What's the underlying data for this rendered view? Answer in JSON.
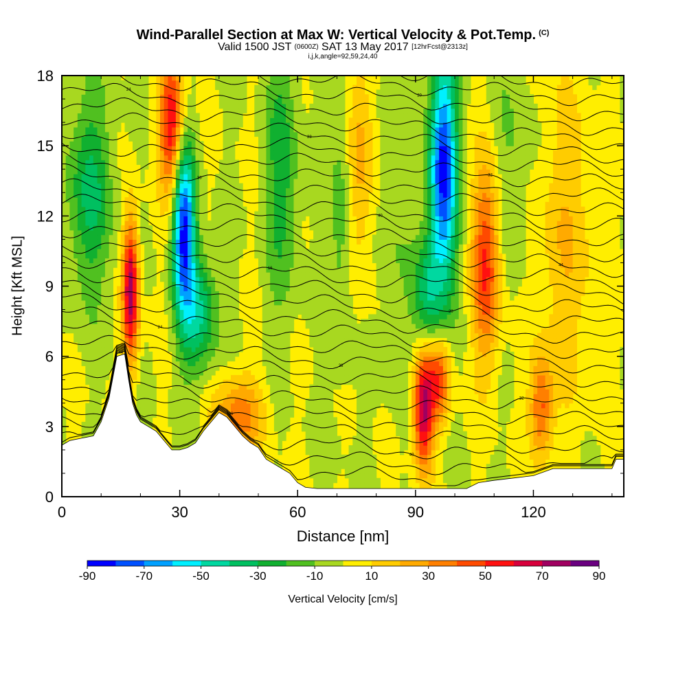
{
  "header": {
    "title": "Wind-Parallel Section at Max W: Vertical Velocity & Pot.Temp.",
    "title_unit": "(C)",
    "valid_prefix": "Valid 1500 JST",
    "valid_utc": "(0600Z)",
    "valid_date": "SAT 13 May 2017",
    "forecast": "[12hrFcst@2313z]",
    "indices": "i,j,k,angle=92,59,24,40"
  },
  "chart_data": {
    "type": "heatmap",
    "title": "Wind-Parallel Section at Max W: Vertical Velocity & Pot.Temp.",
    "xlabel": "Distance [nm]",
    "ylabel": "Height [Kft MSL]",
    "xlim": [
      0,
      143
    ],
    "ylim": [
      0,
      18
    ],
    "x_ticks": [
      0,
      30,
      60,
      90,
      120
    ],
    "y_ticks": [
      0,
      3,
      6,
      9,
      12,
      15,
      18
    ],
    "colorbar": {
      "label": "Vertical Velocity [cm/s]",
      "tick_labels": [
        "-90",
        "-70",
        "-50",
        "-30",
        "-10",
        "10",
        "30",
        "50",
        "70",
        "90"
      ],
      "levels": [
        -90,
        -80,
        -70,
        -60,
        -50,
        -40,
        -30,
        -20,
        -10,
        0,
        10,
        20,
        30,
        40,
        50,
        60,
        70,
        80,
        90
      ],
      "colors": [
        "#0000ff",
        "#0050ff",
        "#00a0ff",
        "#00f0ff",
        "#00d8a0",
        "#00c060",
        "#10b030",
        "#50c020",
        "#a8d820",
        "#ffee00",
        "#ffcc00",
        "#ffaa00",
        "#ff7f00",
        "#ff4a00",
        "#ff1010",
        "#d8003c",
        "#a00060",
        "#6a0080"
      ]
    },
    "terrain": {
      "x": [
        0,
        2,
        5,
        8,
        10,
        12,
        14,
        16,
        17,
        18,
        19,
        20,
        22,
        24,
        26,
        28,
        30,
        32,
        34,
        36,
        38,
        40,
        42,
        44,
        46,
        48,
        50,
        52,
        54,
        56,
        58,
        60,
        62,
        65,
        70,
        75,
        80,
        85,
        90,
        95,
        100,
        103,
        106,
        110,
        115,
        120,
        125,
        130,
        135,
        140,
        141,
        143
      ],
      "height_kft": [
        2.2,
        2.4,
        2.5,
        2.6,
        3.2,
        4.2,
        6.0,
        6.1,
        5.0,
        4.0,
        3.5,
        3.2,
        3.0,
        2.8,
        2.4,
        2.0,
        2.0,
        2.1,
        2.3,
        2.8,
        3.2,
        3.6,
        3.4,
        3.0,
        2.6,
        2.3,
        2.1,
        1.6,
        1.4,
        1.2,
        1.0,
        0.6,
        0.4,
        0.35,
        0.35,
        0.35,
        0.35,
        0.35,
        0.35,
        0.35,
        0.35,
        0.35,
        0.6,
        0.7,
        0.8,
        0.9,
        1.2,
        1.2,
        1.2,
        1.2,
        1.6,
        1.6
      ]
    },
    "velocity_features": [
      {
        "x": 17.5,
        "y": 8.8,
        "sx": 1.4,
        "sy": 2.2,
        "w": 75
      },
      {
        "x": 28,
        "y": 15.8,
        "sx": 2.2,
        "sy": 2.2,
        "w": 62
      },
      {
        "x": 31,
        "y": 11.5,
        "sx": 2.0,
        "sy": 2.6,
        "w": -85
      },
      {
        "x": 35,
        "y": 7.8,
        "sx": 3.0,
        "sy": 1.8,
        "w": -40
      },
      {
        "x": 7,
        "y": 13.0,
        "sx": 4.0,
        "sy": 3.0,
        "w": -32
      },
      {
        "x": 45,
        "y": 3.5,
        "sx": 4.5,
        "sy": 1.2,
        "w": 35
      },
      {
        "x": 56,
        "y": 14.0,
        "sx": 3.0,
        "sy": 4.0,
        "w": -25
      },
      {
        "x": 71,
        "y": 12.0,
        "sx": 2.0,
        "sy": 4.5,
        "w": -18
      },
      {
        "x": 76,
        "y": 14.5,
        "sx": 2.5,
        "sy": 3.5,
        "w": 25
      },
      {
        "x": 97,
        "y": 14.0,
        "sx": 2.5,
        "sy": 3.5,
        "w": -85
      },
      {
        "x": 93,
        "y": 8.5,
        "sx": 2.5,
        "sy": 1.8,
        "w": -35
      },
      {
        "x": 92,
        "y": 3.8,
        "sx": 1.8,
        "sy": 1.8,
        "w": 72
      },
      {
        "x": 96,
        "y": 5.0,
        "sx": 2.0,
        "sy": 1.3,
        "w": 48
      },
      {
        "x": 108,
        "y": 10.0,
        "sx": 2.5,
        "sy": 3.0,
        "w": 52
      },
      {
        "x": 115,
        "y": 14.0,
        "sx": 4.0,
        "sy": 4.0,
        "w": -12
      },
      {
        "x": 122,
        "y": 3.8,
        "sx": 2.0,
        "sy": 1.5,
        "w": 42
      },
      {
        "x": 128,
        "y": 11.0,
        "sx": 6.0,
        "sy": 5.0,
        "w": 18
      },
      {
        "x": 84,
        "y": 12.0,
        "sx": 3.0,
        "sy": 5.0,
        "w": -10
      }
    ],
    "isentropes": {
      "count": 30,
      "contour_labels": [
        "44",
        "40",
        "36",
        "32",
        "28",
        "24",
        "20",
        "16"
      ]
    }
  }
}
